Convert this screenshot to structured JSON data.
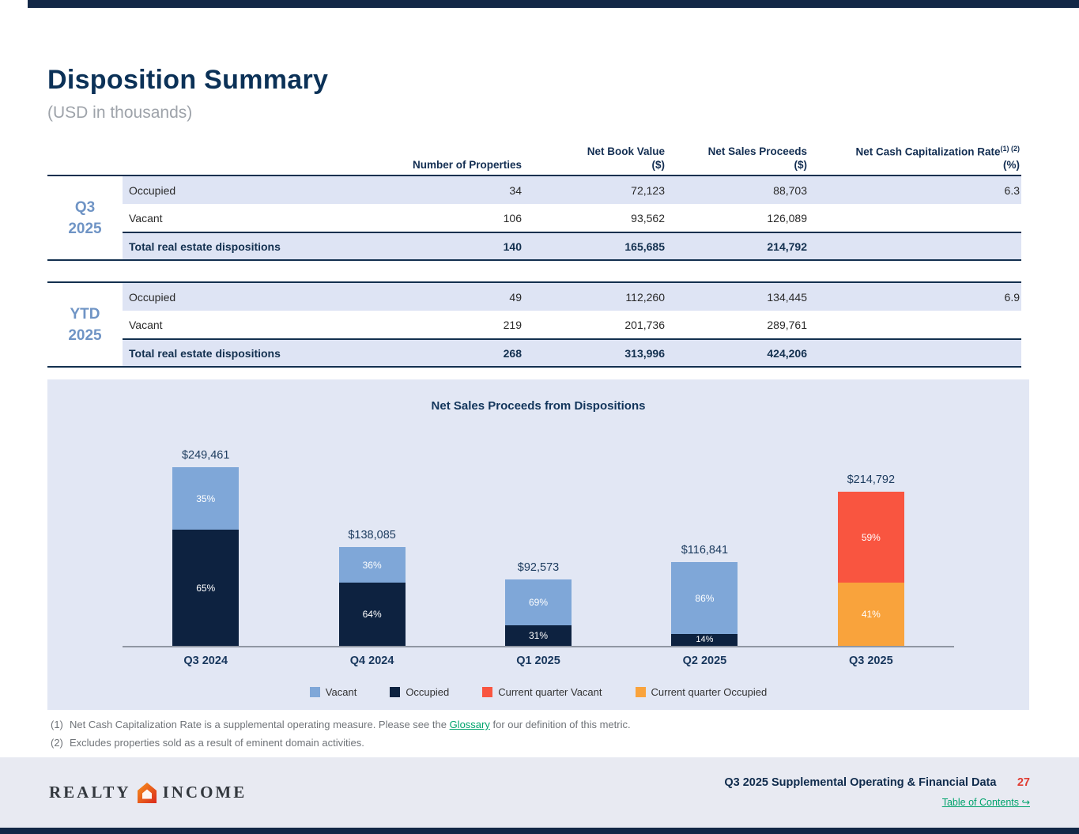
{
  "page": {
    "title": "Disposition Summary",
    "subtitle": "(USD in thousands)"
  },
  "table": {
    "headers": {
      "properties": "Number of Properties",
      "net_book_value_line1": "Net Book Value",
      "net_book_value_line2": "($)",
      "net_sales_proceeds_line1": "Net Sales Proceeds",
      "net_sales_proceeds_line2": "($)",
      "cap_rate_line1": "Net Cash Capitalization Rate",
      "cap_rate_sup": "(1) (2)",
      "cap_rate_line2": "(%)"
    },
    "groups": [
      {
        "period_line1": "Q3",
        "period_line2": "2025",
        "rows": [
          {
            "label": "Occupied",
            "properties": "34",
            "net_book_value": "72,123",
            "net_sales_proceeds": "88,703",
            "cap_rate": "6.3"
          },
          {
            "label": "Vacant",
            "properties": "106",
            "net_book_value": "93,562",
            "net_sales_proceeds": "126,089",
            "cap_rate": ""
          },
          {
            "label": "Total real estate dispositions",
            "properties": "140",
            "net_book_value": "165,685",
            "net_sales_proceeds": "214,792",
            "cap_rate": ""
          }
        ]
      },
      {
        "period_line1": "YTD",
        "period_line2": "2025",
        "rows": [
          {
            "label": "Occupied",
            "properties": "49",
            "net_book_value": "112,260",
            "net_sales_proceeds": "134,445",
            "cap_rate": "6.9"
          },
          {
            "label": "Vacant",
            "properties": "219",
            "net_book_value": "201,736",
            "net_sales_proceeds": "289,761",
            "cap_rate": ""
          },
          {
            "label": "Total real estate dispositions",
            "properties": "268",
            "net_book_value": "313,996",
            "net_sales_proceeds": "424,206",
            "cap_rate": ""
          }
        ]
      }
    ]
  },
  "chart_data": {
    "type": "bar",
    "stacked": true,
    "title": "Net Sales Proceeds from Dispositions",
    "categories": [
      "Q3 2024",
      "Q4 2024",
      "Q1 2025",
      "Q2 2025",
      "Q3 2025"
    ],
    "ylim": [
      0,
      249461
    ],
    "grid": false,
    "legend_position": "bottom",
    "colors": {
      "vacant": "#7FA7D8",
      "occupied": "#0D2240",
      "current_quarter_vacant": "#F95540",
      "current_quarter_occupied": "#F9A33C"
    },
    "bars": [
      {
        "category": "Q3 2024",
        "total": 249461,
        "total_label": "$249,461",
        "segments": [
          {
            "name": "occupied",
            "pct": 65
          },
          {
            "name": "vacant",
            "pct": 35
          }
        ]
      },
      {
        "category": "Q4 2024",
        "total": 138085,
        "total_label": "$138,085",
        "segments": [
          {
            "name": "occupied",
            "pct": 64
          },
          {
            "name": "vacant",
            "pct": 36
          }
        ]
      },
      {
        "category": "Q1 2025",
        "total": 92573,
        "total_label": "$92,573",
        "segments": [
          {
            "name": "occupied",
            "pct": 31
          },
          {
            "name": "vacant",
            "pct": 69
          }
        ]
      },
      {
        "category": "Q2 2025",
        "total": 116841,
        "total_label": "$116,841",
        "segments": [
          {
            "name": "occupied",
            "pct": 14
          },
          {
            "name": "vacant",
            "pct": 86
          }
        ]
      },
      {
        "category": "Q3 2025",
        "total": 214792,
        "total_label": "$214,792",
        "segments": [
          {
            "name": "current_quarter_occupied",
            "pct": 41
          },
          {
            "name": "current_quarter_vacant",
            "pct": 59
          }
        ]
      }
    ],
    "legend": [
      {
        "label": "Vacant",
        "color": "#7FA7D8"
      },
      {
        "label": "Occupied",
        "color": "#0D2240"
      },
      {
        "label": "Current quarter Vacant",
        "color": "#F95540"
      },
      {
        "label": "Current quarter Occupied",
        "color": "#F9A33C"
      }
    ]
  },
  "footnotes": [
    {
      "marker": "(1)",
      "pre": "Net Cash Capitalization Rate is a supplemental operating measure. Please see the ",
      "link": "Glossary",
      "post": " for our definition of this metric."
    },
    {
      "marker": "(2)",
      "pre": "Excludes properties sold as a result of eminent domain activities.",
      "link": "",
      "post": ""
    }
  ],
  "footer": {
    "brand_left": "REALTY",
    "brand_right": "INCOME",
    "doc_title": "Q3 2025 Supplemental Operating & Financial Data",
    "page_number": "27",
    "toc_label": "Table of Contents",
    "toc_arrow": "↪"
  },
  "theme": {
    "accent_navy": "#132847",
    "heading_navy": "#0B3157",
    "period_blue": "#6F94C5",
    "row_shade": "#DEE4F4",
    "panel_bg": "#E2E7F4",
    "link_green": "#00A36C",
    "page_number_red": "#E03C31"
  }
}
